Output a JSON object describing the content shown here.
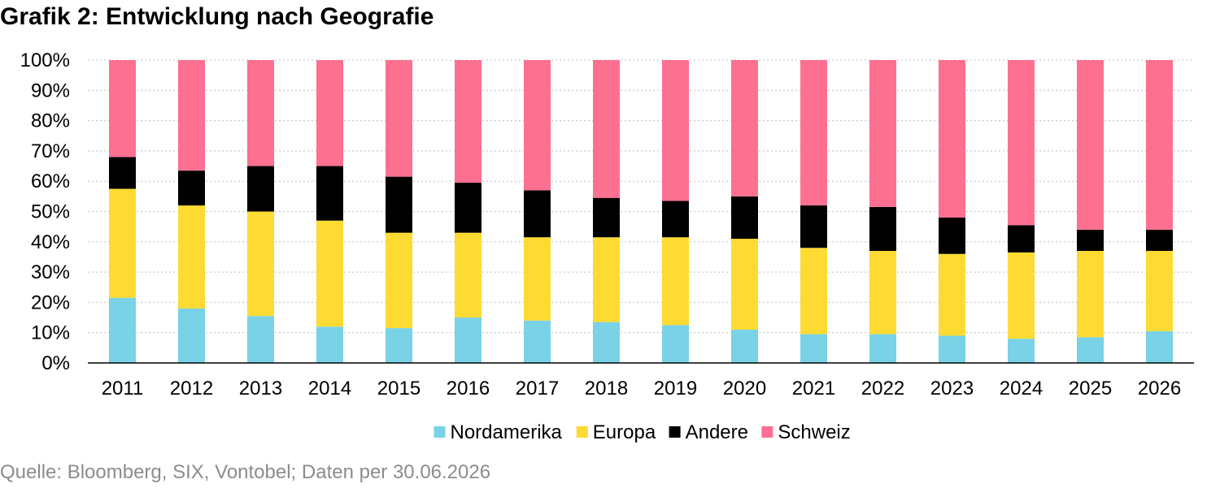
{
  "header": {
    "title": "Grafik 2: Entwicklung nach Geografie"
  },
  "footer": {
    "source": "Quelle: Bloomberg, SIX, Vontobel; Daten per 30.06.2026"
  },
  "chart_data": {
    "type": "bar",
    "stacked": true,
    "title": "Grafik 2: Entwicklung nach Geografie",
    "xlabel": "",
    "ylabel": "",
    "ylim": [
      0,
      100
    ],
    "yticks": [
      "0%",
      "10%",
      "20%",
      "30%",
      "40%",
      "50%",
      "60%",
      "70%",
      "80%",
      "90%",
      "100%"
    ],
    "grid": "horizontal-dotted",
    "legend_position": "bottom",
    "categories": [
      "2011",
      "2012",
      "2013",
      "2014",
      "2015",
      "2016",
      "2017",
      "2018",
      "2019",
      "2020",
      "2021",
      "2022",
      "2023",
      "2024",
      "2025",
      "2026"
    ],
    "series": [
      {
        "name": "Nordamerika",
        "color": "#79d2e6",
        "values": [
          21.5,
          18,
          15.5,
          12,
          11.5,
          15,
          14,
          13.5,
          12.5,
          11,
          9.5,
          9.5,
          9,
          8,
          8.5,
          10.5
        ]
      },
      {
        "name": "Europa",
        "color": "#fddb32",
        "values": [
          36,
          34,
          34.5,
          35,
          31.5,
          28,
          27.5,
          28,
          29,
          30,
          28.5,
          27.5,
          27,
          28.5,
          28.5,
          26.5
        ]
      },
      {
        "name": "Andere",
        "color": "#000000",
        "values": [
          10.5,
          11.5,
          15,
          18,
          18.5,
          16.5,
          15.5,
          13,
          12,
          14,
          14,
          14.5,
          12,
          9,
          7,
          7
        ]
      },
      {
        "name": "Schweiz",
        "color": "#fd7090",
        "values": [
          32,
          36.5,
          35,
          35,
          38.5,
          40.5,
          43,
          45.5,
          46.5,
          45,
          48,
          48.5,
          52,
          54.5,
          56,
          56
        ]
      }
    ]
  }
}
